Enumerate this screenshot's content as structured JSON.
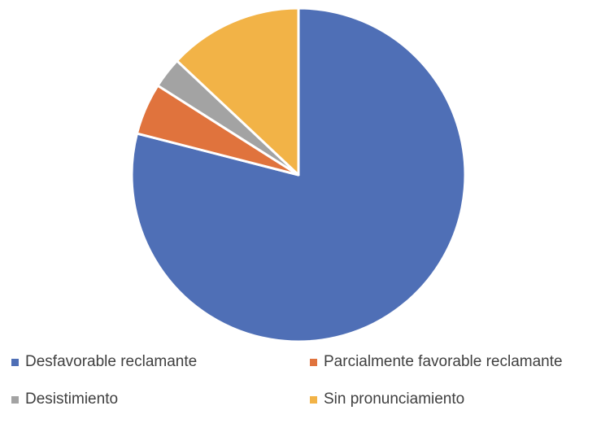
{
  "chart_data": {
    "type": "pie",
    "title": "",
    "start_angle_deg": 0,
    "direction": "clockwise",
    "legend_position": "bottom",
    "slices": [
      {
        "name": "Desfavorable reclamante",
        "value": 79,
        "color": "#4F6FB6"
      },
      {
        "name": "Parcialmente favorable reclamante",
        "value": 5,
        "color": "#E0733D"
      },
      {
        "name": "Desistimiento",
        "value": 3,
        "color": "#A3A3A3"
      },
      {
        "name": "Sin pronunciamiento",
        "value": 13,
        "color": "#F2B347"
      }
    ]
  }
}
